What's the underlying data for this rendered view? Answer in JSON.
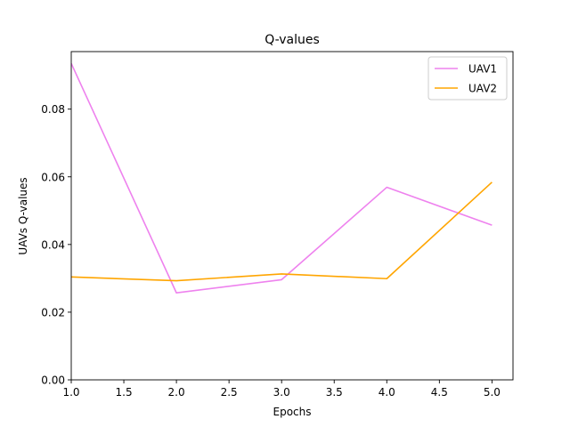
{
  "chart_data": {
    "type": "line",
    "title": "Q-values",
    "xlabel": "Epochs",
    "ylabel": "UAVs Q-values",
    "xlim": [
      1.0,
      5.2
    ],
    "ylim": [
      0.0,
      0.097
    ],
    "xticks": [
      "1.0",
      "1.5",
      "2.0",
      "2.5",
      "3.0",
      "3.5",
      "4.0",
      "4.5",
      "5.0"
    ],
    "yticks": [
      "0.00",
      "0.02",
      "0.04",
      "0.06",
      "0.08"
    ],
    "x": [
      1,
      2,
      3,
      4,
      5
    ],
    "series": [
      {
        "name": "UAV1",
        "color": "#ee82ee",
        "values": [
          0.0935,
          0.0257,
          0.0296,
          0.0569,
          0.0457
        ]
      },
      {
        "name": "UAV2",
        "color": "#ffa500",
        "values": [
          0.0304,
          0.0293,
          0.0313,
          0.0299,
          0.0584
        ]
      }
    ],
    "legend": "top-right",
    "grid": false
  }
}
